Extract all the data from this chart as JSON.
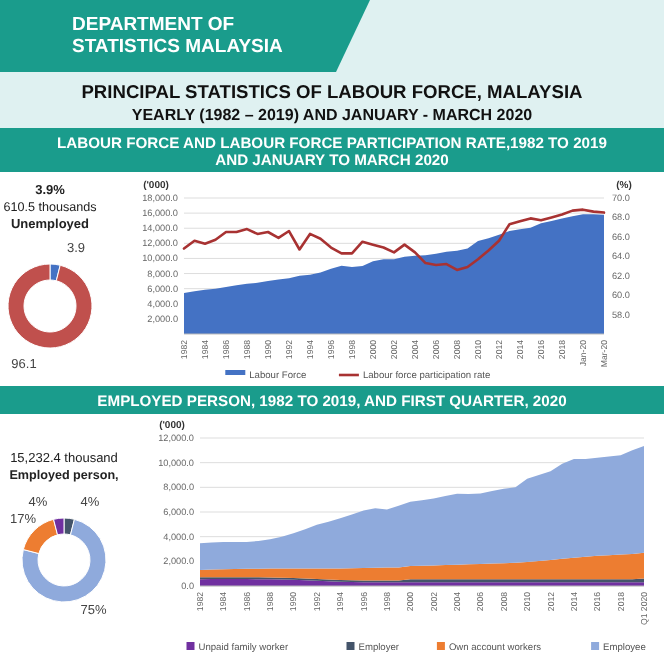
{
  "chart_data": [
    {
      "type": "other",
      "title": "PRINCIPAL  STATISTICS  OF  LABOUR  FORCE,  MALAYSIA",
      "subtitle": "YEARLY (1982 – 2019) AND JANUARY - MARCH 2020",
      "annotations": [
        "DEPARTMENT OF STATISTICS MALAYSIA"
      ]
    },
    {
      "type": "donut",
      "categories": [
        null,
        null
      ],
      "values": [
        3.9,
        96.1
      ],
      "colors": [
        "#4472c4",
        "#c0504d"
      ],
      "data_labels": true,
      "annotations": [
        "3.9%",
        "610.5 thousands",
        "Unemployed"
      ]
    },
    {
      "type": "area",
      "title": "LABOUR FORCE AND LABOUR FORCE PARTICIPATION RATE,1982 TO 2019 AND JANUARY TO MARCH 2020",
      "ylabel": "('000)",
      "y2label": "(%)",
      "categories": [
        "1982",
        null,
        "1984",
        null,
        "1986",
        null,
        "1988",
        null,
        "1990",
        null,
        "1992",
        null,
        "1994",
        null,
        "1996",
        null,
        "1998",
        null,
        "2000",
        null,
        "2002",
        null,
        "2004",
        null,
        "2006",
        null,
        "2008",
        null,
        "2010",
        null,
        "2012",
        null,
        "2014",
        null,
        "2016",
        null,
        "2018",
        null,
        "Jan-20",
        null,
        "Mar-20"
      ],
      "series": [
        {
          "name": "Labour Force",
          "type": "area",
          "color": "#4472c4",
          "values": [
            5431,
            5672,
            5862,
            5990,
            6222,
            6457,
            6637,
            6779,
            7000,
            7204,
            7370,
            7700,
            7846,
            8140,
            8641,
            9038,
            8881,
            9010,
            9616,
            9892,
            9886,
            10240,
            10346,
            10413,
            10629,
            10890,
            11028,
            11315,
            12304,
            12676,
            13120,
            13635,
            13853,
            14068,
            14668,
            14940,
            15280,
            15582,
            15850,
            15840,
            15770
          ]
        },
        {
          "name": "Labour force participation rate",
          "type": "line",
          "axis": "y2",
          "color": "#a83232",
          "values": [
            64.8,
            65.6,
            65.3,
            65.7,
            66.5,
            66.5,
            66.8,
            66.3,
            66.5,
            65.9,
            66.6,
            64.7,
            66.3,
            65.8,
            64.9,
            64.3,
            64.3,
            65.5,
            65.2,
            64.9,
            64.4,
            65.2,
            64.4,
            63.3,
            63.1,
            63.2,
            62.6,
            62.9,
            63.7,
            64.6,
            65.6,
            67.3,
            67.6,
            67.9,
            67.7,
            68.0,
            68.3,
            68.7,
            68.8,
            68.6,
            68.5
          ]
        }
      ],
      "ylim": [
        0,
        18000
      ],
      "yticks": [
        {
          "value": 2000,
          "label": "2,000.0"
        },
        {
          "value": 4000,
          "label": "4,000.0"
        },
        {
          "value": 6000,
          "label": "6,000.0"
        },
        {
          "value": 8000,
          "label": "8,000.0"
        },
        {
          "value": 10000,
          "label": "10,000.0"
        },
        {
          "value": 12000,
          "label": "12,000.0"
        },
        {
          "value": 14000,
          "label": "14,000.0"
        },
        {
          "value": 16000,
          "label": "16,000.0"
        },
        {
          "value": 18000,
          "label": "18,000.0"
        }
      ],
      "y2lim": [
        56,
        70
      ],
      "y2ticks": [
        {
          "value": 58,
          "label": "58.0"
        },
        {
          "value": 60,
          "label": "60.0"
        },
        {
          "value": 62,
          "label": "62.0"
        },
        {
          "value": 64,
          "label": "64.0"
        },
        {
          "value": 66,
          "label": "66.0"
        },
        {
          "value": 68,
          "label": "68.0"
        },
        {
          "value": 70,
          "label": "70.0"
        }
      ],
      "grid": "y",
      "legend": "bottom"
    },
    {
      "type": "donut",
      "categories": [
        null,
        null,
        null,
        null
      ],
      "values": [
        4,
        75,
        17,
        4
      ],
      "colors": [
        "#44546a",
        "#8faadc",
        "#ed7d31",
        "#7030a0"
      ],
      "value_labels": [
        "4%",
        "75%",
        "17%",
        "4%"
      ],
      "annotations": [
        "15,232.4 thousand",
        "Employed person,"
      ]
    },
    {
      "type": "area",
      "stacked": true,
      "title": "EMPLOYED PERSON, 1982 TO 2019, AND FIRST QUARTER, 2020",
      "ylabel": "('000)",
      "categories": [
        "1982",
        null,
        "1984",
        null,
        "1986",
        null,
        "1988",
        null,
        "1990",
        null,
        "1992",
        null,
        "1994",
        null,
        "1996",
        null,
        "1998",
        null,
        "2000",
        null,
        "2002",
        null,
        "2004",
        null,
        "2006",
        null,
        "2008",
        null,
        "2010",
        null,
        "2012",
        null,
        "2014",
        null,
        "2016",
        null,
        "2018",
        null,
        "Q1 2020"
      ],
      "series": [
        {
          "name": "Unpaid family worker",
          "color": "#7030a0",
          "values": [
            550,
            560,
            560,
            560,
            560,
            550,
            540,
            520,
            500,
            460,
            420,
            380,
            340,
            320,
            300,
            300,
            300,
            300,
            300,
            300,
            300,
            300,
            300,
            300,
            300,
            300,
            300,
            300,
            300,
            300,
            300,
            300,
            300,
            300,
            300,
            300,
            300,
            300,
            300
          ]
        },
        {
          "name": "Employer",
          "color": "#44546a",
          "values": [
            150,
            150,
            150,
            150,
            150,
            150,
            150,
            150,
            150,
            150,
            150,
            150,
            150,
            150,
            150,
            150,
            150,
            150,
            250,
            250,
            250,
            250,
            250,
            250,
            250,
            250,
            250,
            250,
            250,
            250,
            250,
            250,
            250,
            250,
            250,
            250,
            250,
            250,
            300
          ]
        },
        {
          "name": "Own account workers",
          "color": "#ed7d31",
          "values": [
            600,
            620,
            640,
            660,
            680,
            700,
            720,
            740,
            760,
            800,
            840,
            880,
            920,
            960,
            1000,
            1020,
            1040,
            1060,
            1080,
            1100,
            1120,
            1150,
            1180,
            1210,
            1240,
            1270,
            1300,
            1330,
            1400,
            1480,
            1560,
            1650,
            1750,
            1830,
            1900,
            1950,
            2000,
            2050,
            2100
          ]
        },
        {
          "name": "Employee",
          "color": "#8faadc",
          "values": [
            2170,
            2190,
            2220,
            2190,
            2180,
            2250,
            2390,
            2590,
            2860,
            3190,
            3550,
            3790,
            4080,
            4370,
            4680,
            4830,
            4710,
            4990,
            5200,
            5300,
            5420,
            5600,
            5740,
            5690,
            5710,
            5880,
            6040,
            6120,
            6740,
            6970,
            7190,
            7720,
            7990,
            7920,
            7950,
            8000,
            8050,
            8400,
            8650
          ]
        }
      ],
      "ylim": [
        0,
        12000
      ],
      "yticks": [
        {
          "value": 0,
          "label": "0.0"
        },
        {
          "value": 2000,
          "label": "2,000.0"
        },
        {
          "value": 4000,
          "label": "4,000.0"
        },
        {
          "value": 6000,
          "label": "6,000.0"
        },
        {
          "value": 8000,
          "label": "8,000.0"
        },
        {
          "value": 10000,
          "label": "10,000.0"
        },
        {
          "value": 12000,
          "label": "12,000.0"
        }
      ],
      "grid": "y",
      "legend": "bottom"
    }
  ]
}
